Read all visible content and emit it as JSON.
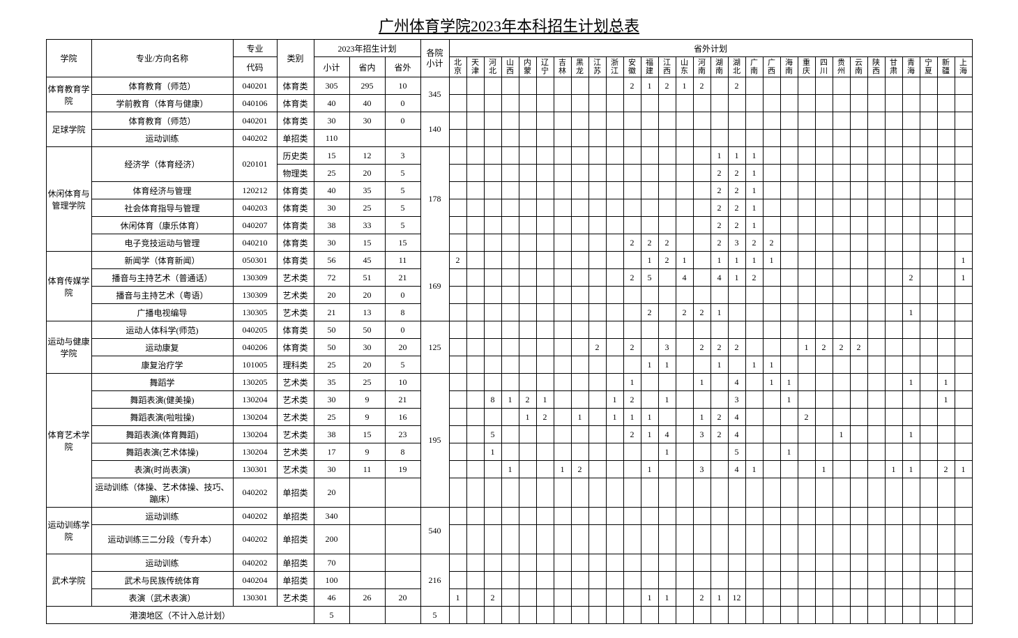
{
  "title": "广州体育学院2023年本科招生计划总表",
  "headers": {
    "college": "学院",
    "major": "专业/方向名称",
    "codeTop": "专业",
    "codeBot": "代码",
    "cat": "类别",
    "planTop": "2023年招生计划",
    "xj": "小计",
    "sn": "省内",
    "sw": "省外",
    "yx": "各院\n小计",
    "pw": "省外计划"
  },
  "provinces": [
    "北京",
    "天津",
    "河北",
    "山西",
    "内蒙",
    "辽宁",
    "吉林",
    "黑龙",
    "江苏",
    "浙江",
    "安徽",
    "福建",
    "江西",
    "山东",
    "河南",
    "湖南",
    "湖北",
    "广南",
    "广西",
    "海南",
    "重庆",
    "四川",
    "贵州",
    "云南",
    "陕西",
    "甘肃",
    "青海",
    "宁夏",
    "新疆",
    "上海"
  ],
  "rows": [
    {
      "college": "体育教育学院",
      "rs": 2,
      "major": "体育教育（师范）",
      "code": "040201",
      "cat": "体育类",
      "xj": 305,
      "sn": 295,
      "sw": 10,
      "yx": 345,
      "yxrs": 2,
      "p": {
        "10": 2,
        "11": 1,
        "12": 2,
        "13": 1,
        "14": 2,
        "16": 2
      }
    },
    {
      "major": "学前教育（体育与健康）",
      "code": "040106",
      "cat": "体育类",
      "xj": 40,
      "sn": 40,
      "sw": 0,
      "p": {}
    },
    {
      "college": "足球学院",
      "rs": 2,
      "major": "体育教育（师范）",
      "code": "040201",
      "cat": "体育类",
      "xj": 30,
      "sn": 30,
      "sw": 0,
      "yx": 140,
      "yxrs": 2,
      "p": {}
    },
    {
      "major": "运动训练",
      "code": "040202",
      "cat": "单招类",
      "xj": 110,
      "sn": "",
      "sw": "",
      "p": {}
    },
    {
      "college": "休闲体育与管理学院",
      "rs": 6,
      "major": "经济学（体育经济）",
      "mrs": 2,
      "code": "020101",
      "crs": 2,
      "cat": "历史类",
      "xj": 15,
      "sn": 12,
      "sw": 3,
      "yx": 178,
      "yxrs": 6,
      "p": {
        "15": 1,
        "16": 1,
        "17": 1
      }
    },
    {
      "cat": "物理类",
      "xj": 25,
      "sn": 20,
      "sw": 5,
      "p": {
        "15": 2,
        "16": 2,
        "17": 1
      }
    },
    {
      "major": "体育经济与管理",
      "code": "120212",
      "cat": "体育类",
      "xj": 40,
      "sn": 35,
      "sw": 5,
      "p": {
        "15": 2,
        "16": 2,
        "17": 1
      }
    },
    {
      "major": "社会体育指导与管理",
      "code": "040203",
      "cat": "体育类",
      "xj": 30,
      "sn": 25,
      "sw": 5,
      "p": {
        "15": 2,
        "16": 2,
        "17": 1
      }
    },
    {
      "major": "休闲体育（康乐体育）",
      "code": "040207",
      "cat": "体育类",
      "xj": 38,
      "sn": 33,
      "sw": 5,
      "p": {
        "15": 2,
        "16": 2,
        "17": 1
      }
    },
    {
      "major": "电子竞技运动与管理",
      "code": "040210",
      "cat": "体育类",
      "xj": 30,
      "sn": 15,
      "sw": 15,
      "p": {
        "10": 2,
        "11": 2,
        "12": 2,
        "15": 2,
        "16": 3,
        "17": 2,
        "18": 2
      }
    },
    {
      "college": "体育传媒学院",
      "rs": 4,
      "major": "新闻学（体育新闻）",
      "code": "050301",
      "cat": "体育类",
      "xj": 56,
      "sn": 45,
      "sw": 11,
      "yx": 169,
      "yxrs": 4,
      "p": {
        "0": 2,
        "11": 1,
        "12": 2,
        "13": 1,
        "15": 1,
        "16": 1,
        "17": 1,
        "18": 1,
        "29": 1
      }
    },
    {
      "major": "播音与主持艺术（普通话）",
      "code": "130309",
      "cat": "艺术类",
      "xj": 72,
      "sn": 51,
      "sw": 21,
      "p": {
        "10": 2,
        "11": 5,
        "13": 4,
        "15": 4,
        "16": 1,
        "17": 2,
        "26": 2,
        "29": 1
      }
    },
    {
      "major": "播音与主持艺术（粤语）",
      "code": "130309",
      "cat": "艺术类",
      "xj": 20,
      "sn": 20,
      "sw": 0,
      "p": {}
    },
    {
      "major": "广播电视编导",
      "code": "130305",
      "cat": "艺术类",
      "xj": 21,
      "sn": 13,
      "sw": 8,
      "p": {
        "11": 2,
        "13": 2,
        "14": 2,
        "15": 1,
        "26": 1
      }
    },
    {
      "college": "运动与健康学院",
      "rs": 3,
      "major": "运动人体科学(师范)",
      "code": "040205",
      "cat": "体育类",
      "xj": 50,
      "sn": 50,
      "sw": 0,
      "yx": 125,
      "yxrs": 3,
      "p": {}
    },
    {
      "major": "运动康复",
      "code": "040206",
      "cat": "体育类",
      "xj": 50,
      "sn": 30,
      "sw": 20,
      "p": {
        "8": 2,
        "10": 2,
        "12": 3,
        "14": 2,
        "15": 2,
        "16": 2,
        "20": 1,
        "21": 2,
        "22": 2,
        "23": 2
      }
    },
    {
      "major": "康复治疗学",
      "code": "101005",
      "cat": "理科类",
      "xj": 25,
      "sn": 20,
      "sw": 5,
      "p": {
        "11": 1,
        "12": 1,
        "15": 1,
        "17": 1,
        "18": 1
      }
    },
    {
      "college": "体育艺术学院",
      "rs": 7,
      "major": "舞蹈学",
      "code": "130205",
      "cat": "艺术类",
      "xj": 35,
      "sn": 25,
      "sw": 10,
      "yx": 195,
      "yxrs": 7,
      "p": {
        "10": 1,
        "14": 1,
        "16": 4,
        "18": 1,
        "19": 1,
        "26": 1,
        "28": 1
      }
    },
    {
      "major": "舞蹈表演(健美操)",
      "code": "130204",
      "cat": "艺术类",
      "xj": 30,
      "sn": 9,
      "sw": 21,
      "p": {
        "2": 8,
        "3": 1,
        "4": 2,
        "5": 1,
        "9": 1,
        "10": 2,
        "12": 1,
        "16": 3,
        "19": 1,
        "28": 1
      }
    },
    {
      "major": "舞蹈表演(啦啦操)",
      "code": "130204",
      "cat": "艺术类",
      "xj": 25,
      "sn": 9,
      "sw": 16,
      "p": {
        "4": 1,
        "5": 2,
        "7": 1,
        "9": 1,
        "10": 1,
        "11": 1,
        "14": 1,
        "15": 2,
        "16": 4,
        "20": 2
      }
    },
    {
      "major": "舞蹈表演(体育舞蹈)",
      "code": "130204",
      "cat": "艺术类",
      "xj": 38,
      "sn": 15,
      "sw": 23,
      "p": {
        "2": 5,
        "10": 2,
        "11": 1,
        "12": 4,
        "14": 3,
        "15": 2,
        "16": 4,
        "22": 1,
        "26": 1
      }
    },
    {
      "major": "舞蹈表演(艺术体操)",
      "code": "130204",
      "cat": "艺术类",
      "xj": 17,
      "sn": 9,
      "sw": 8,
      "p": {
        "2": 1,
        "12": 1,
        "16": 5,
        "19": 1
      }
    },
    {
      "major": "表演(时尚表演)",
      "code": "130301",
      "cat": "艺术类",
      "xj": 30,
      "sn": 11,
      "sw": 19,
      "p": {
        "3": 1,
        "6": 1,
        "7": 2,
        "11": 1,
        "14": 3,
        "16": 4,
        "17": 1,
        "21": 1,
        "25": 1,
        "26": 1,
        "28": 2,
        "29": 1
      }
    },
    {
      "major": "运动训练（体操、艺术体操、技巧、蹦床）",
      "code": "040202",
      "cat": "单招类",
      "xj": 20,
      "sn": "",
      "sw": "",
      "tall": true,
      "p": {}
    },
    {
      "college": "运动训练学院",
      "rs": 2,
      "major": "运动训练",
      "code": "040202",
      "cat": "单招类",
      "xj": 340,
      "sn": "",
      "sw": "",
      "yx": 540,
      "yxrs": 2,
      "p": {}
    },
    {
      "major": "运动训练三二分段（专升本）",
      "code": "040202",
      "cat": "单招类",
      "xj": 200,
      "sn": "",
      "sw": "",
      "tall": true,
      "p": {}
    },
    {
      "college": "武术学院",
      "rs": 3,
      "major": "运动训练",
      "code": "040202",
      "cat": "单招类",
      "xj": 70,
      "sn": "",
      "sw": "",
      "yx": 216,
      "yxrs": 3,
      "p": {}
    },
    {
      "major": "武术与民族传统体育",
      "code": "040204",
      "cat": "单招类",
      "xj": 100,
      "sn": "",
      "sw": "",
      "p": {}
    },
    {
      "major": "表演（武术表演）",
      "code": "130301",
      "cat": "艺术类",
      "xj": 46,
      "sn": 26,
      "sw": 20,
      "p": {
        "0": 1,
        "2": 2,
        "11": 1,
        "12": 1,
        "14": 2,
        "15": 1,
        "16": 12
      }
    }
  ],
  "footer": {
    "label": "港澳地区（不计入总计划）",
    "xj": 5,
    "yx": 5
  }
}
